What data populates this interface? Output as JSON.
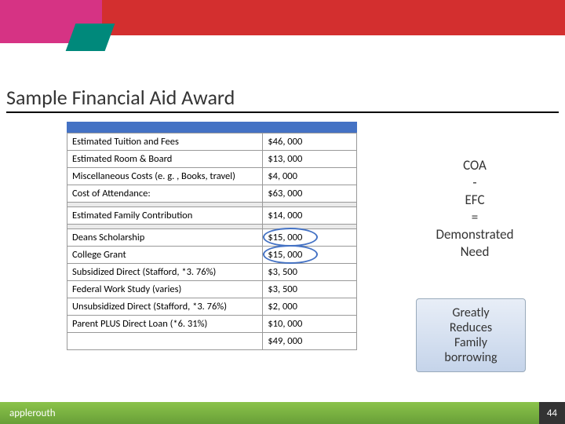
{
  "accent": {
    "red": "#d32f2f",
    "dark_red": "#b71c1c",
    "pink": "#d63384",
    "teal": "#00897b",
    "green_top": "#8bc34a",
    "green_bottom": "#689f38",
    "blue": "#4472c4"
  },
  "title": "Sample Financial Aid Award",
  "table": {
    "rows": [
      {
        "label": "Estimated Tuition and Fees",
        "value": "$46, 000"
      },
      {
        "label": "Estimated  Room & Board",
        "value": "$13, 000"
      },
      {
        "label": "Miscellaneous Costs (e. g. , Books, travel)",
        "value": "$4, 000"
      },
      {
        "label": "Cost of Attendance:",
        "value": "$63, 000"
      }
    ],
    "efc": {
      "label": "Estimated Family Contribution",
      "value": "$14, 000"
    },
    "awards": [
      {
        "label": "Deans Scholarship",
        "value": "$15, 000",
        "circled": true
      },
      {
        "label": "College Grant",
        "value": "$15, 000",
        "circled": true
      },
      {
        "label": "Subsidized Direct (Stafford, *3. 76%)",
        "value": "$3, 500"
      },
      {
        "label": "Federal Work Study (varies)",
        "value": "$3, 500"
      },
      {
        "label": "Unsubsidized Direct (Stafford, *3. 76%)",
        "value": "$2, 000"
      },
      {
        "label": "Parent PLUS Direct Loan (*6. 31%)",
        "value": "$10, 000"
      }
    ],
    "total": "$49, 000"
  },
  "side": {
    "line1": "COA",
    "line2": "-",
    "line3": "EFC",
    "line4": "=",
    "line5": "Demonstrated",
    "line6": "Need"
  },
  "callout": {
    "l1": "Greatly",
    "l2": "Reduces",
    "l3": "Family",
    "l4": "borrowing"
  },
  "footer": {
    "brand": "applerouth",
    "page": "44"
  }
}
